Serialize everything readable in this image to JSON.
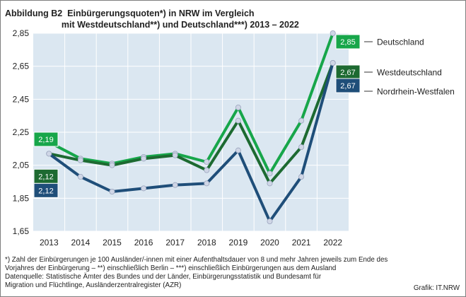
{
  "title_lines": [
    "Abbildung B2  Einbürgerungsquoten*) in NRW im Vergleich",
    "                       mit Westdeutschland**) und Deutschland***) 2013 – 2022"
  ],
  "footnotes": [
    "*) Zahl der Einbürgerungen  je 100 Ausländer/-innen mit einer Aufenthaltsdauer von 8 und mehr Jahren jeweils zum Ende des",
    "Vorjahres der Einbürgerung  – **) einschließlich  Berlin – ***) einschließlich  Einbürgerungen  aus dem Ausland",
    "Datenquelle:  Statistische Ämter des Bundes und der Länder, Einbürgerungsstatistik  und Bundesamt  für",
    "Migration  und Flüchtlinge,  Ausländerzentralregister (AZR)"
  ],
  "credit": "Grafik: IT.NRW",
  "chart_data": {
    "type": "line",
    "x": [
      "2013",
      "2014",
      "2015",
      "2016",
      "2017",
      "2018",
      "2019",
      "2020",
      "2021",
      "2022"
    ],
    "ylim": [
      1.65,
      2.85
    ],
    "yticks": [
      "1,65",
      "1,85",
      "2,05",
      "2,25",
      "2,45",
      "2,65",
      "2,85"
    ],
    "ytick_values": [
      1.65,
      1.85,
      2.05,
      2.25,
      2.45,
      2.65,
      2.85
    ],
    "grid": true,
    "plot_background": "#dbe7f1",
    "series": [
      {
        "name": "Deutschland",
        "color": "#17a64a",
        "values": [
          2.19,
          2.09,
          2.06,
          2.1,
          2.12,
          2.07,
          2.4,
          2.0,
          2.32,
          2.85
        ],
        "first_label": "2,19",
        "last_label": "2,85"
      },
      {
        "name": "Westdeutschland",
        "color": "#1d6a31",
        "values": [
          2.12,
          2.08,
          2.05,
          2.09,
          2.11,
          2.02,
          2.32,
          1.94,
          2.16,
          2.67
        ],
        "first_label": "2,12",
        "last_label": "2,67"
      },
      {
        "name": "Nordrhein-Westfalen",
        "color": "#1f4e79",
        "values": [
          2.12,
          1.98,
          1.89,
          1.91,
          1.93,
          1.94,
          2.14,
          1.71,
          1.98,
          2.67
        ],
        "first_label": "2,12",
        "last_label": "2,67"
      }
    ]
  }
}
